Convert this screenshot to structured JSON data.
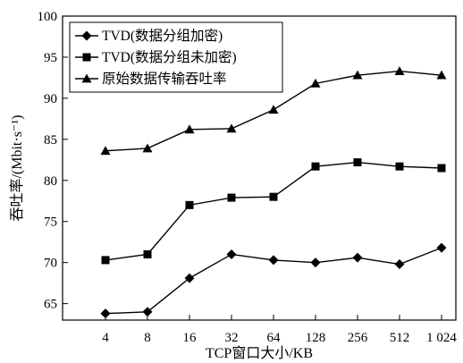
{
  "chart_data": {
    "type": "line",
    "xlabel": "TCP窗口大小/KB",
    "ylabel": "吞吐率/(Mbit·s⁻¹)",
    "categories": [
      "4",
      "8",
      "16",
      "32",
      "64",
      "128",
      "256",
      "512",
      "1 024"
    ],
    "ylim": [
      63,
      100
    ],
    "yticks": [
      65,
      70,
      75,
      80,
      85,
      90,
      95,
      100
    ],
    "grid": false,
    "legend_position": "top-left",
    "series": [
      {
        "name": "TVD(数据分组加密)",
        "marker": "diamond",
        "values": [
          63.8,
          64.0,
          68.1,
          71.0,
          70.3,
          70.0,
          70.6,
          69.8,
          71.8
        ]
      },
      {
        "name": "TVD(数据分组未加密)",
        "marker": "square",
        "values": [
          70.3,
          71.0,
          77.0,
          77.9,
          78.0,
          81.7,
          82.2,
          81.7,
          81.5
        ]
      },
      {
        "name": "原始数据传输吞吐率",
        "marker": "triangle",
        "values": [
          83.6,
          83.9,
          86.2,
          86.3,
          88.6,
          91.8,
          92.8,
          93.3,
          92.8
        ]
      }
    ]
  }
}
